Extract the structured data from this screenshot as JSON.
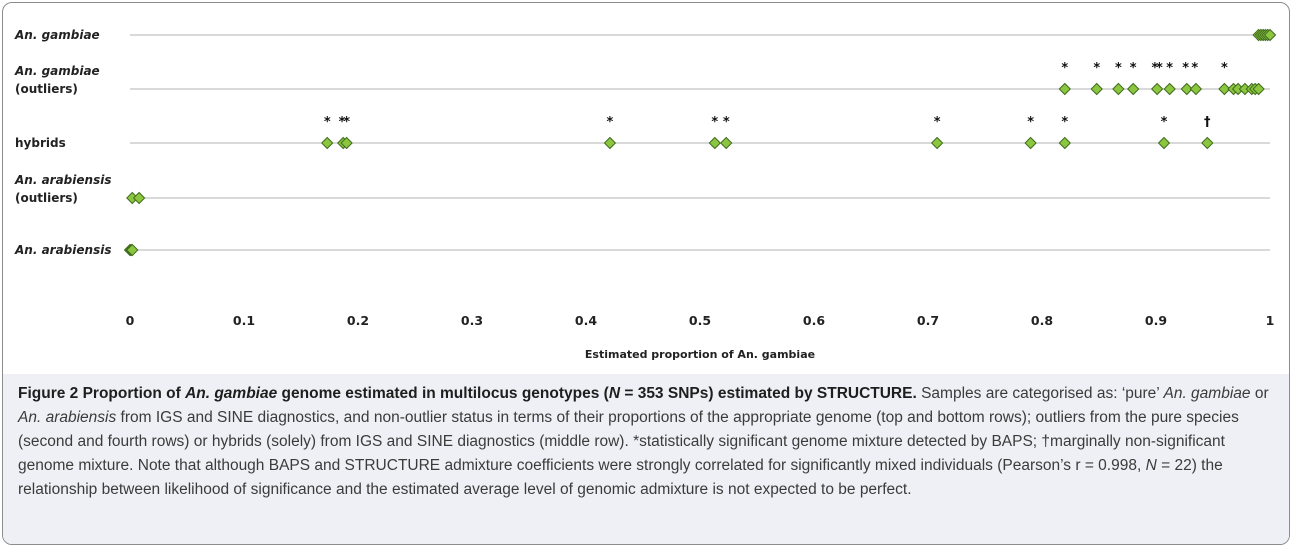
{
  "chart_data": {
    "type": "scatter",
    "xlabel": "Estimated proportion of An. gambiae",
    "xlim": [
      0,
      1
    ],
    "xticks": [
      "0",
      "0.1",
      "0.2",
      "0.3",
      "0.4",
      "0.5",
      "0.6",
      "0.7",
      "0.8",
      "0.9",
      "1"
    ],
    "rows": [
      {
        "label_lines": [
          {
            "parts": [
              {
                "t": "An. gambiae",
                "i": true
              }
            ]
          }
        ],
        "points": [
          0.99,
          0.992,
          0.994,
          0.996,
          0.998,
          1.0
        ]
      },
      {
        "label_lines": [
          {
            "parts": [
              {
                "t": "An. gambiae",
                "i": true
              }
            ]
          },
          {
            "parts": [
              {
                "t": "(outliers)",
                "i": false
              }
            ]
          }
        ],
        "points": [
          0.82,
          0.848,
          0.867,
          0.88,
          0.901,
          0.912,
          0.927,
          0.935,
          0.96,
          0.968,
          0.972,
          0.978,
          0.984,
          0.987,
          0.99
        ],
        "marks": [
          {
            "x": 0.82,
            "m": "*"
          },
          {
            "x": 0.848,
            "m": "*"
          },
          {
            "x": 0.867,
            "m": "*"
          },
          {
            "x": 0.88,
            "m": "*"
          },
          {
            "x": 0.899,
            "m": "*"
          },
          {
            "x": 0.903,
            "m": "*"
          },
          {
            "x": 0.912,
            "m": "*"
          },
          {
            "x": 0.926,
            "m": "*"
          },
          {
            "x": 0.934,
            "m": "*"
          },
          {
            "x": 0.96,
            "m": "*"
          }
        ]
      },
      {
        "label_lines": [
          {
            "parts": [
              {
                "t": "hybrids",
                "i": false
              }
            ]
          }
        ],
        "points": [
          0.173,
          0.187,
          0.19,
          0.421,
          0.513,
          0.523,
          0.708,
          0.79,
          0.82,
          0.907,
          0.945
        ],
        "marks": [
          {
            "x": 0.173,
            "m": "*"
          },
          {
            "x": 0.186,
            "m": "*"
          },
          {
            "x": 0.19,
            "m": "*"
          },
          {
            "x": 0.421,
            "m": "*"
          },
          {
            "x": 0.513,
            "m": "*"
          },
          {
            "x": 0.523,
            "m": "*"
          },
          {
            "x": 0.708,
            "m": "*"
          },
          {
            "x": 0.79,
            "m": "*"
          },
          {
            "x": 0.82,
            "m": "*"
          },
          {
            "x": 0.907,
            "m": "*"
          },
          {
            "x": 0.945,
            "m": "†"
          }
        ]
      },
      {
        "label_lines": [
          {
            "parts": [
              {
                "t": "An. arabiensis",
                "i": true
              }
            ]
          },
          {
            "parts": [
              {
                "t": "(outliers)",
                "i": false
              }
            ]
          }
        ],
        "points": [
          0.002,
          0.008
        ]
      },
      {
        "label_lines": [
          {
            "parts": [
              {
                "t": "An. arabiensis",
                "i": true
              }
            ]
          }
        ],
        "points": [
          0.0,
          0.001,
          0.002
        ]
      }
    ]
  },
  "caption": {
    "title_parts": [
      {
        "t": "Figure 2 Proportion of ",
        "i": false
      },
      {
        "t": "An. gambiae",
        "i": true
      },
      {
        "t": " genome estimated in multilocus genotypes (",
        "i": false
      },
      {
        "t": "N",
        "i": true
      },
      {
        "t": " = 353 SNPs) estimated by STRUCTURE.",
        "i": false
      }
    ],
    "body_parts": [
      {
        "t": " Samples are categorised as: ‘pure’ ",
        "i": false
      },
      {
        "t": "An. gambiae",
        "i": true
      },
      {
        "t": " or ",
        "i": false
      },
      {
        "t": "An. arabiensis",
        "i": true
      },
      {
        "t": " from IGS and SINE diagnostics, and non-outlier status in terms of their proportions of the appropriate genome (top and bottom rows); outliers from the pure species (second and fourth rows) or hybrids (solely) from IGS and SINE diagnostics (middle row). *statistically significant genome mixture detected by BAPS; †marginally non-significant genome mixture. Note that although BAPS and STRUCTURE admixture coefficients were strongly correlated for significantly mixed individuals (Pearson’s r = 0.998, ",
        "i": false
      },
      {
        "t": "N",
        "i": true
      },
      {
        "t": " = 22) the relationship between likelihood of significance and the estimated average level of genomic admixture is not expected to be perfect.",
        "i": false
      }
    ]
  },
  "colors": {
    "marker_fill": "#8cc63f",
    "marker_stroke": "#3f6b1e",
    "row_line": "#b3b3b3",
    "caption_bg": "#eef0f5"
  }
}
